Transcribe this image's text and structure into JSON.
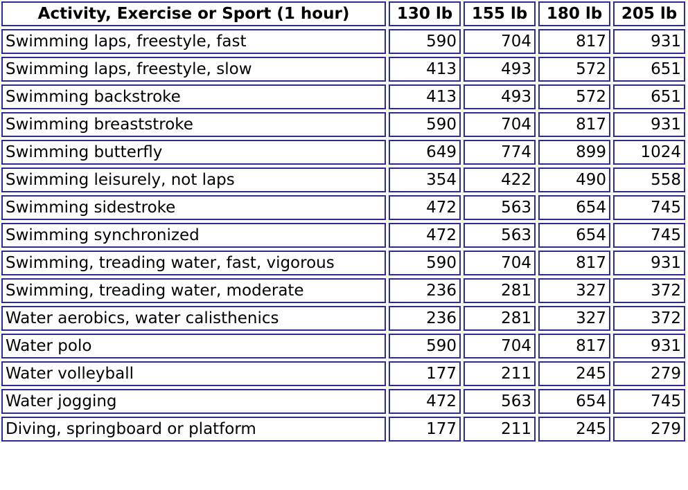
{
  "table": {
    "headers": [
      "Activity, Exercise or Sport (1 hour)",
      "130 lb",
      "155 lb",
      "180 lb",
      "205 lb"
    ],
    "rows": [
      [
        "Swimming laps, freestyle, fast",
        "590",
        "704",
        "817",
        "931"
      ],
      [
        "Swimming laps, freestyle, slow",
        "413",
        "493",
        "572",
        "651"
      ],
      [
        "Swimming backstroke",
        "413",
        "493",
        "572",
        "651"
      ],
      [
        "Swimming breaststroke",
        "590",
        "704",
        "817",
        "931"
      ],
      [
        "Swimming butterfly",
        "649",
        "774",
        "899",
        "1024"
      ],
      [
        "Swimming leisurely, not laps",
        "354",
        "422",
        "490",
        "558"
      ],
      [
        "Swimming sidestroke",
        "472",
        "563",
        "654",
        "745"
      ],
      [
        "Swimming synchronized",
        "472",
        "563",
        "654",
        "745"
      ],
      [
        "Swimming, treading water, fast, vigorous",
        "590",
        "704",
        "817",
        "931"
      ],
      [
        "Swimming, treading water, moderate",
        "236",
        "281",
        "327",
        "372"
      ],
      [
        "Water aerobics, water calisthenics",
        "236",
        "281",
        "327",
        "372"
      ],
      [
        "Water polo",
        "590",
        "704",
        "817",
        "931"
      ],
      [
        "Water volleyball",
        "177",
        "211",
        "245",
        "279"
      ],
      [
        "Water jogging",
        "472",
        "563",
        "654",
        "745"
      ],
      [
        "Diving, springboard or platform",
        "177",
        "211",
        "245",
        "279"
      ]
    ]
  },
  "colors": {
    "border": "#2a2f8f",
    "text": "#000000",
    "background": "#ffffff"
  }
}
